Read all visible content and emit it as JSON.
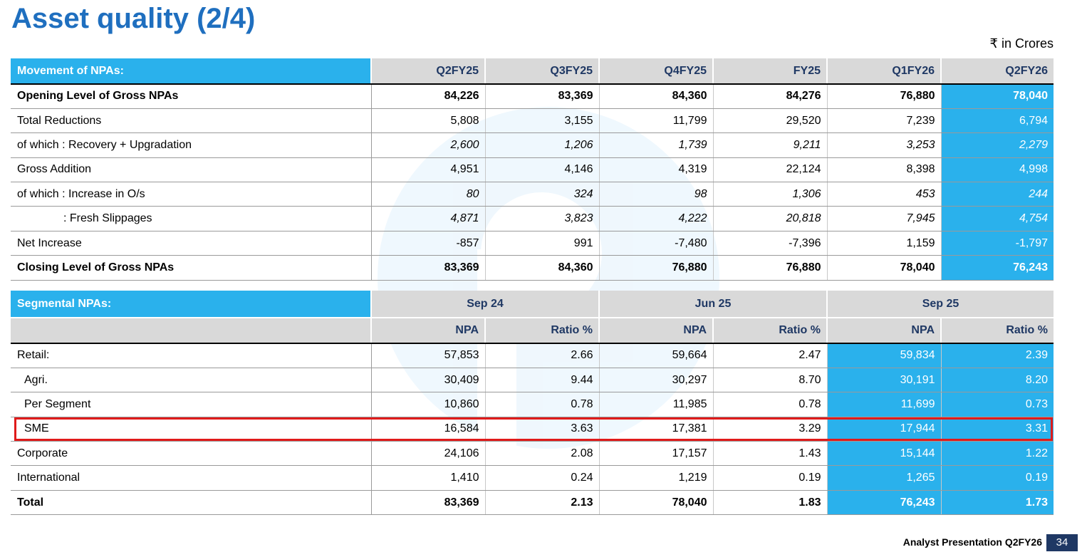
{
  "title": "Asset quality (2/4)",
  "units": "₹ in Crores",
  "colors": {
    "accent": "#2ab1ec",
    "title": "#1f6fbf",
    "header_text": "#1f3864",
    "highlight_border": "#e01b1b"
  },
  "movement": {
    "label": "Movement of NPAs:",
    "columns": [
      "Q2FY25",
      "Q3FY25",
      "Q4FY25",
      "FY25",
      "Q1FY26",
      "Q2FY26"
    ],
    "rows": [
      {
        "label": "Opening Level of Gross NPAs",
        "values": [
          "84,226",
          "83,369",
          "84,360",
          "84,276",
          "76,880",
          "78,040"
        ]
      },
      {
        "label": "Total Reductions",
        "values": [
          "5,808",
          "3,155",
          "11,799",
          "29,520",
          "7,239",
          "6,794"
        ]
      },
      {
        "label": "of which : Recovery + Upgradation",
        "values": [
          "2,600",
          "1,206",
          "1,739",
          "9,211",
          "3,253",
          "2,279"
        ]
      },
      {
        "label": "Gross Addition",
        "values": [
          "4,951",
          "4,146",
          "4,319",
          "22,124",
          "8,398",
          "4,998"
        ]
      },
      {
        "label": "of which : Increase in O/s",
        "values": [
          "80",
          "324",
          "98",
          "1,306",
          "453",
          "244"
        ]
      },
      {
        "label": ": Fresh Slippages",
        "values": [
          "4,871",
          "3,823",
          "4,222",
          "20,818",
          "7,945",
          "4,754"
        ]
      },
      {
        "label": "Net Increase",
        "values": [
          "-857",
          "991",
          "-7,480",
          "-7,396",
          "1,159",
          "-1,797"
        ]
      },
      {
        "label": "Closing Level of Gross NPAs",
        "values": [
          "83,369",
          "84,360",
          "76,880",
          "76,880",
          "78,040",
          "76,243"
        ]
      }
    ]
  },
  "segmental": {
    "label": "Segmental NPAs:",
    "periods": [
      "Sep 24",
      "Jun 25",
      "Sep 25"
    ],
    "subcolumns": [
      "NPA",
      "Ratio %",
      "NPA",
      "Ratio %",
      "NPA",
      "Ratio %"
    ],
    "rows": [
      {
        "label": "Retail:",
        "values": [
          "57,853",
          "2.66",
          "59,664",
          "2.47",
          "59,834",
          "2.39"
        ]
      },
      {
        "label": "Agri.",
        "values": [
          "30,409",
          "9.44",
          "30,297",
          "8.70",
          "30,191",
          "8.20"
        ]
      },
      {
        "label": "Per Segment",
        "values": [
          "10,860",
          "0.78",
          "11,985",
          "0.78",
          "11,699",
          "0.73"
        ]
      },
      {
        "label": "SME",
        "values": [
          "16,584",
          "3.63",
          "17,381",
          "3.29",
          "17,944",
          "3.31"
        ]
      },
      {
        "label": "Corporate",
        "values": [
          "24,106",
          "2.08",
          "17,157",
          "1.43",
          "15,144",
          "1.22"
        ]
      },
      {
        "label": "International",
        "values": [
          "1,410",
          "0.24",
          "1,219",
          "0.19",
          "1,265",
          "0.19"
        ]
      },
      {
        "label": "Total",
        "values": [
          "83,369",
          "2.13",
          "78,040",
          "1.83",
          "76,243",
          "1.73"
        ]
      }
    ]
  },
  "footer": {
    "text": "Analyst Presentation Q2FY26",
    "page": "34"
  }
}
